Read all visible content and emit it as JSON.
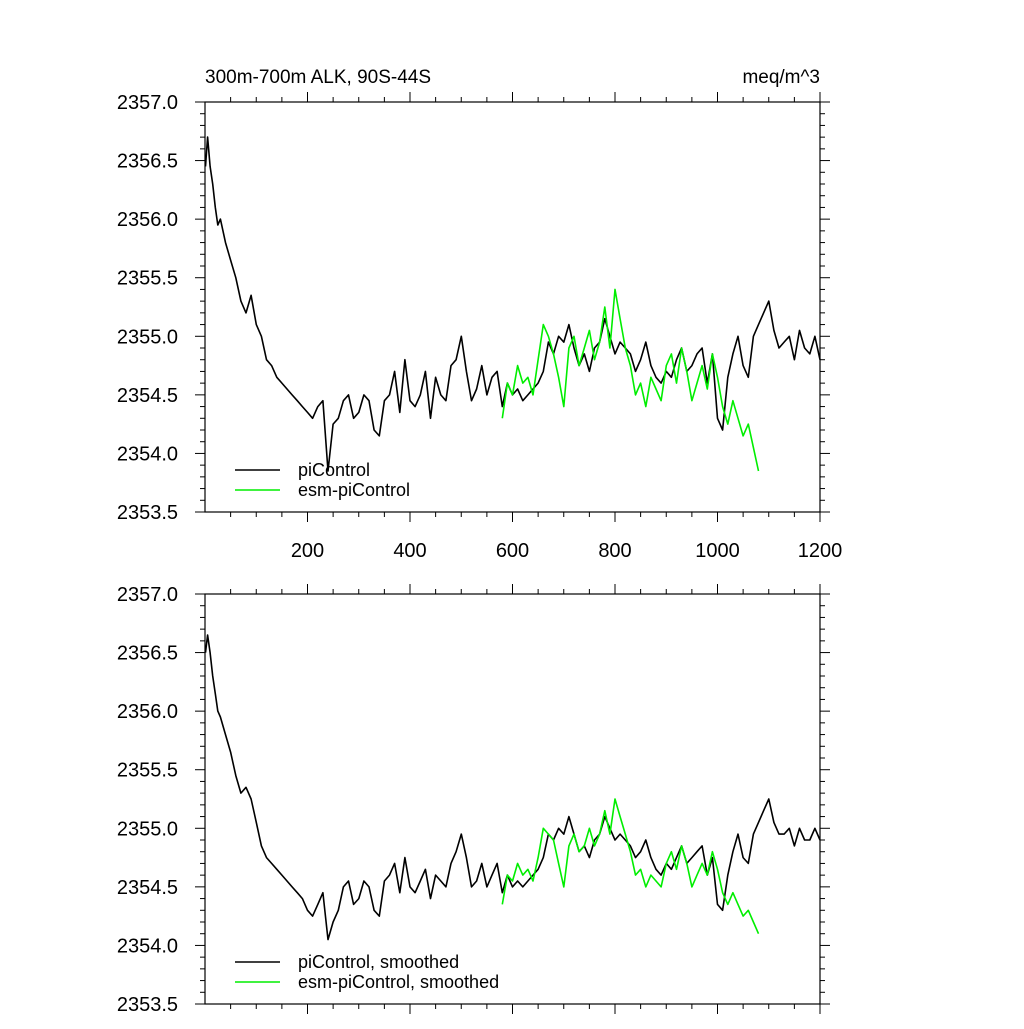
{
  "header": {
    "title_left": "300m-700m ALK, 90S-44S",
    "title_right": "meq/m^3"
  },
  "chart_data": [
    {
      "type": "line",
      "panel": "top",
      "xlim": [
        0,
        1200
      ],
      "ylim": [
        2353.5,
        2357.0
      ],
      "xticks": [
        200,
        400,
        600,
        800,
        1000,
        1200
      ],
      "xtick_labels": [
        "200",
        "400",
        "600",
        "800",
        "1000",
        "1200"
      ],
      "yticks": [
        2353.5,
        2354.0,
        2354.5,
        2355.0,
        2355.5,
        2356.0,
        2356.5,
        2357.0
      ],
      "ytick_labels": [
        "2353.5",
        "2354.0",
        "2354.5",
        "2355.0",
        "2355.5",
        "2356.0",
        "2356.5",
        "2357.0"
      ],
      "grid": false,
      "legend_position": "bottom-left",
      "series": [
        {
          "name": "piControl",
          "color": "#000000",
          "x": [
            1,
            5,
            10,
            15,
            20,
            25,
            30,
            40,
            50,
            60,
            70,
            80,
            90,
            100,
            110,
            120,
            130,
            140,
            150,
            160,
            170,
            180,
            190,
            200,
            210,
            220,
            230,
            240,
            250,
            260,
            270,
            280,
            290,
            300,
            310,
            320,
            330,
            340,
            350,
            360,
            370,
            380,
            390,
            400,
            410,
            420,
            430,
            440,
            450,
            460,
            470,
            480,
            490,
            500,
            510,
            520,
            530,
            540,
            550,
            560,
            570,
            580,
            590,
            600,
            610,
            620,
            630,
            640,
            650,
            660,
            670,
            680,
            690,
            700,
            710,
            720,
            730,
            740,
            750,
            760,
            770,
            780,
            790,
            800,
            810,
            820,
            830,
            840,
            850,
            860,
            870,
            880,
            890,
            900,
            910,
            920,
            930,
            940,
            950,
            960,
            970,
            980,
            990,
            1000,
            1010,
            1020,
            1030,
            1040,
            1050,
            1060,
            1070,
            1080,
            1090,
            1100,
            1110,
            1120,
            1130,
            1140,
            1150,
            1160,
            1170,
            1180,
            1190,
            1200
          ],
          "values": [
            2356.45,
            2356.7,
            2356.45,
            2356.3,
            2356.1,
            2355.95,
            2356.0,
            2355.8,
            2355.65,
            2355.5,
            2355.3,
            2355.2,
            2355.35,
            2355.1,
            2355.0,
            2354.8,
            2354.75,
            2354.65,
            2354.6,
            2354.55,
            2354.5,
            2354.45,
            2354.4,
            2354.35,
            2354.3,
            2354.4,
            2354.45,
            2353.85,
            2354.25,
            2354.3,
            2354.45,
            2354.5,
            2354.3,
            2354.35,
            2354.5,
            2354.45,
            2354.2,
            2354.15,
            2354.45,
            2354.5,
            2354.7,
            2354.35,
            2354.8,
            2354.45,
            2354.4,
            2354.5,
            2354.7,
            2354.3,
            2354.65,
            2354.5,
            2354.45,
            2354.75,
            2354.8,
            2355.0,
            2354.7,
            2354.45,
            2354.55,
            2354.75,
            2354.5,
            2354.65,
            2354.7,
            2354.4,
            2354.6,
            2354.5,
            2354.55,
            2354.45,
            2354.5,
            2354.55,
            2354.6,
            2354.7,
            2354.95,
            2354.85,
            2355.0,
            2354.95,
            2355.1,
            2354.9,
            2354.75,
            2354.85,
            2354.7,
            2354.9,
            2354.95,
            2355.15,
            2355.0,
            2354.85,
            2354.95,
            2354.9,
            2354.85,
            2354.7,
            2354.8,
            2354.95,
            2354.75,
            2354.65,
            2354.6,
            2354.7,
            2354.65,
            2354.8,
            2354.9,
            2354.7,
            2354.75,
            2354.85,
            2354.9,
            2354.6,
            2354.85,
            2354.3,
            2354.2,
            2354.65,
            2354.85,
            2355.0,
            2354.75,
            2354.65,
            2355.0,
            2355.1,
            2355.2,
            2355.3,
            2355.05,
            2354.9,
            2354.95,
            2355.0,
            2354.8,
            2355.05,
            2354.9,
            2354.85,
            2355.0,
            2354.8
          ]
        },
        {
          "name": "esm-piControl",
          "color": "#00ee00",
          "x": [
            580,
            590,
            600,
            610,
            620,
            630,
            640,
            650,
            660,
            670,
            680,
            690,
            700,
            710,
            720,
            730,
            740,
            750,
            760,
            770,
            780,
            790,
            800,
            810,
            820,
            830,
            840,
            850,
            860,
            870,
            880,
            890,
            900,
            910,
            920,
            930,
            940,
            950,
            960,
            970,
            980,
            990,
            1000,
            1010,
            1020,
            1030,
            1040,
            1050,
            1060,
            1070,
            1080
          ],
          "values": [
            2354.3,
            2354.6,
            2354.5,
            2354.75,
            2354.6,
            2354.65,
            2354.5,
            2354.8,
            2355.1,
            2355.0,
            2354.85,
            2354.65,
            2354.4,
            2354.9,
            2355.0,
            2354.75,
            2354.9,
            2355.05,
            2354.8,
            2354.95,
            2355.25,
            2354.9,
            2355.4,
            2355.15,
            2354.9,
            2354.75,
            2354.5,
            2354.6,
            2354.4,
            2354.65,
            2354.55,
            2354.45,
            2354.75,
            2354.85,
            2354.6,
            2354.9,
            2354.7,
            2354.45,
            2354.6,
            2354.75,
            2354.55,
            2354.85,
            2354.65,
            2354.4,
            2354.25,
            2354.45,
            2354.3,
            2354.15,
            2354.25,
            2354.05,
            2353.85
          ]
        }
      ]
    },
    {
      "type": "line",
      "panel": "bottom",
      "xlim": [
        0,
        1200
      ],
      "ylim": [
        2353.5,
        2357.0
      ],
      "xticks": [
        200,
        400,
        600,
        800,
        1000,
        1200
      ],
      "yticks": [
        2353.5,
        2354.0,
        2354.5,
        2355.0,
        2355.5,
        2356.0,
        2356.5,
        2357.0
      ],
      "ytick_labels": [
        "2353.5",
        "2354.0",
        "2354.5",
        "2355.0",
        "2355.5",
        "2356.0",
        "2356.5",
        "2357.0"
      ],
      "grid": false,
      "legend_position": "bottom-left",
      "series": [
        {
          "name": "piControl, smoothed",
          "color": "#000000",
          "x": [
            1,
            5,
            10,
            15,
            20,
            25,
            30,
            40,
            50,
            60,
            70,
            80,
            90,
            100,
            110,
            120,
            130,
            140,
            150,
            160,
            170,
            180,
            190,
            200,
            210,
            220,
            230,
            240,
            250,
            260,
            270,
            280,
            290,
            300,
            310,
            320,
            330,
            340,
            350,
            360,
            370,
            380,
            390,
            400,
            410,
            420,
            430,
            440,
            450,
            460,
            470,
            480,
            490,
            500,
            510,
            520,
            530,
            540,
            550,
            560,
            570,
            580,
            590,
            600,
            610,
            620,
            630,
            640,
            650,
            660,
            670,
            680,
            690,
            700,
            710,
            720,
            730,
            740,
            750,
            760,
            770,
            780,
            790,
            800,
            810,
            820,
            830,
            840,
            850,
            860,
            870,
            880,
            890,
            900,
            910,
            920,
            930,
            940,
            950,
            960,
            970,
            980,
            990,
            1000,
            1010,
            1020,
            1030,
            1040,
            1050,
            1060,
            1070,
            1080,
            1090,
            1100,
            1110,
            1120,
            1130,
            1140,
            1150,
            1160,
            1170,
            1180,
            1190,
            1200
          ],
          "values": [
            2356.5,
            2356.65,
            2356.5,
            2356.3,
            2356.15,
            2356.0,
            2355.95,
            2355.8,
            2355.65,
            2355.45,
            2355.3,
            2355.35,
            2355.25,
            2355.05,
            2354.85,
            2354.75,
            2354.7,
            2354.65,
            2354.6,
            2354.55,
            2354.5,
            2354.45,
            2354.4,
            2354.3,
            2354.25,
            2354.35,
            2354.45,
            2354.05,
            2354.2,
            2354.3,
            2354.5,
            2354.55,
            2354.35,
            2354.4,
            2354.55,
            2354.5,
            2354.3,
            2354.25,
            2354.55,
            2354.6,
            2354.7,
            2354.45,
            2354.75,
            2354.5,
            2354.45,
            2354.55,
            2354.65,
            2354.4,
            2354.6,
            2354.55,
            2354.5,
            2354.7,
            2354.8,
            2354.95,
            2354.75,
            2354.5,
            2354.55,
            2354.7,
            2354.5,
            2354.6,
            2354.7,
            2354.45,
            2354.6,
            2354.5,
            2354.55,
            2354.5,
            2354.55,
            2354.6,
            2354.65,
            2354.75,
            2354.95,
            2354.9,
            2355.0,
            2354.95,
            2355.1,
            2354.95,
            2354.8,
            2354.85,
            2354.75,
            2354.9,
            2354.95,
            2355.1,
            2355.0,
            2354.9,
            2354.95,
            2354.9,
            2354.85,
            2354.75,
            2354.8,
            2354.9,
            2354.75,
            2354.65,
            2354.6,
            2354.7,
            2354.65,
            2354.75,
            2354.85,
            2354.7,
            2354.75,
            2354.8,
            2354.85,
            2354.6,
            2354.75,
            2354.35,
            2354.3,
            2354.6,
            2354.8,
            2354.95,
            2354.75,
            2354.7,
            2354.95,
            2355.05,
            2355.15,
            2355.25,
            2355.05,
            2354.95,
            2354.95,
            2355.0,
            2354.85,
            2355.0,
            2354.9,
            2354.9,
            2355.0,
            2354.9
          ]
        },
        {
          "name": "esm-piControl, smoothed",
          "color": "#00ee00",
          "x": [
            580,
            590,
            600,
            610,
            620,
            630,
            640,
            650,
            660,
            670,
            680,
            690,
            700,
            710,
            720,
            730,
            740,
            750,
            760,
            770,
            780,
            790,
            800,
            810,
            820,
            830,
            840,
            850,
            860,
            870,
            880,
            890,
            900,
            910,
            920,
            930,
            940,
            950,
            960,
            970,
            980,
            990,
            1000,
            1010,
            1020,
            1030,
            1040,
            1050,
            1060,
            1070,
            1080
          ],
          "values": [
            2354.35,
            2354.6,
            2354.55,
            2354.7,
            2354.6,
            2354.65,
            2354.55,
            2354.75,
            2355.0,
            2354.95,
            2354.9,
            2354.7,
            2354.5,
            2354.85,
            2354.95,
            2354.8,
            2354.85,
            2355.0,
            2354.85,
            2354.95,
            2355.15,
            2354.95,
            2355.25,
            2355.1,
            2354.95,
            2354.8,
            2354.6,
            2354.65,
            2354.5,
            2354.6,
            2354.55,
            2354.5,
            2354.7,
            2354.8,
            2354.65,
            2354.85,
            2354.7,
            2354.5,
            2354.6,
            2354.7,
            2354.6,
            2354.8,
            2354.65,
            2354.45,
            2354.35,
            2354.45,
            2354.35,
            2354.25,
            2354.3,
            2354.2,
            2354.1
          ]
        }
      ]
    }
  ]
}
